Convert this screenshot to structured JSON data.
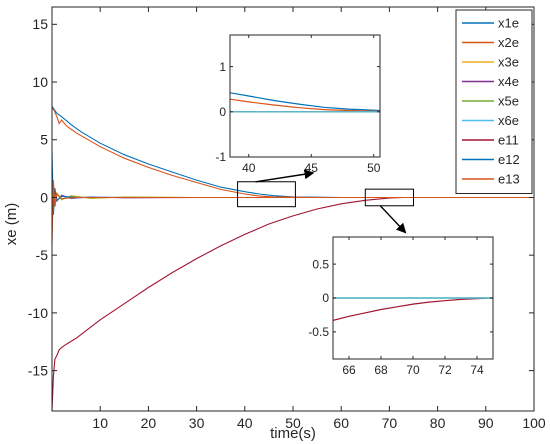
{
  "chart_data": [
    {
      "type": "line",
      "role": "main",
      "xlabel": "time(s)",
      "ylabel": "xe (m)",
      "xlim": [
        0,
        100
      ],
      "ylim": [
        -18.5,
        16.5
      ],
      "xticks": [
        10,
        20,
        30,
        40,
        50,
        60,
        70,
        80,
        90,
        100
      ],
      "yticks": [
        -15,
        -10,
        -5,
        0,
        5,
        10,
        15
      ],
      "grid": false,
      "legend_position": "top-right",
      "series": [
        {
          "name": "x1e",
          "color": "#0072BD",
          "x": [
            0,
            0.5,
            1,
            2,
            4,
            6,
            10,
            15,
            20,
            25,
            30,
            35,
            40,
            43,
            46,
            50,
            55,
            60,
            70,
            100
          ],
          "y": [
            7.9,
            7.6,
            7.3,
            7.0,
            6.3,
            5.7,
            4.7,
            3.7,
            2.9,
            2.2,
            1.5,
            0.9,
            0.5,
            0.3,
            0.15,
            0.05,
            0.02,
            0,
            0,
            0
          ]
        },
        {
          "name": "x2e",
          "color": "#D95319",
          "x": [
            0,
            0.5,
            1,
            1.5,
            2,
            3,
            5,
            10,
            15,
            20,
            25,
            30,
            35,
            40,
            43,
            46,
            50,
            55,
            60,
            70,
            100
          ],
          "y": [
            7.8,
            7.5,
            7.0,
            6.4,
            6.7,
            6.2,
            5.6,
            4.4,
            3.4,
            2.6,
            1.9,
            1.3,
            0.7,
            0.3,
            0.12,
            0.05,
            0.02,
            0,
            0,
            0,
            0
          ]
        },
        {
          "name": "x3e",
          "color": "#EDB120",
          "x": [
            0,
            0.3,
            0.6,
            1,
            2,
            4,
            8,
            15,
            30,
            100
          ],
          "y": [
            0,
            0.9,
            -0.5,
            0.4,
            -0.2,
            0.15,
            -0.08,
            0.04,
            0,
            0
          ]
        },
        {
          "name": "x4e",
          "color": "#7E2F8E",
          "x": [
            0,
            0.3,
            0.6,
            1,
            2,
            4,
            8,
            15,
            30,
            100
          ],
          "y": [
            0,
            -0.6,
            0.5,
            -0.3,
            0.2,
            -0.1,
            0.06,
            -0.03,
            0,
            0
          ]
        },
        {
          "name": "x5e",
          "color": "#77AC30",
          "x": [
            0,
            0.3,
            0.6,
            1,
            2,
            4,
            8,
            15,
            30,
            100
          ],
          "y": [
            0,
            0.6,
            -0.4,
            0.3,
            -0.15,
            0.1,
            -0.05,
            0.02,
            0,
            0
          ]
        },
        {
          "name": "x6e",
          "color": "#4DBEEE",
          "x": [
            0,
            0.3,
            0.6,
            1,
            2,
            4,
            8,
            15,
            30,
            100
          ],
          "y": [
            0,
            -0.4,
            0.3,
            -0.2,
            0.12,
            -0.06,
            0.03,
            0,
            0,
            0
          ]
        },
        {
          "name": "e11",
          "color": "#A2142F",
          "x": [
            0,
            0.3,
            0.6,
            1,
            1.5,
            2,
            3,
            5,
            10,
            15,
            20,
            25,
            30,
            35,
            40,
            45,
            50,
            55,
            60,
            65,
            70,
            73,
            76,
            100
          ],
          "y": [
            -18.5,
            -15.5,
            -14.0,
            -13.7,
            -13.2,
            -13.0,
            -12.7,
            -12.2,
            -10.6,
            -9.2,
            -7.8,
            -6.5,
            -5.3,
            -4.2,
            -3.2,
            -2.3,
            -1.6,
            -1.0,
            -0.55,
            -0.25,
            -0.05,
            0,
            0,
            0
          ]
        },
        {
          "name": "e12",
          "color": "#0072BD",
          "x": [
            0,
            0.3,
            0.6,
            1,
            2,
            5,
            100
          ],
          "y": [
            4.0,
            -1.5,
            0.8,
            -0.3,
            0.1,
            0,
            0
          ]
        },
        {
          "name": "e13",
          "color": "#D95319",
          "x": [
            0,
            0.3,
            0.6,
            1,
            2,
            5,
            100
          ],
          "y": [
            -4.0,
            1.5,
            -0.8,
            0.3,
            -0.1,
            0,
            0
          ]
        }
      ]
    },
    {
      "type": "line",
      "role": "inset-upper",
      "xlim": [
        38.5,
        50.5
      ],
      "ylim": [
        -1,
        1.7
      ],
      "xticks": [
        40,
        45,
        50
      ],
      "yticks": [
        -1,
        0,
        1
      ],
      "series": [
        {
          "name": "x1e",
          "color": "#0072BD",
          "x": [
            38.5,
            40,
            42,
            44,
            46,
            48,
            50.5
          ],
          "y": [
            0.42,
            0.35,
            0.25,
            0.17,
            0.1,
            0.06,
            0.03
          ]
        },
        {
          "name": "x2e",
          "color": "#D95319",
          "x": [
            38.5,
            40,
            42,
            44,
            46,
            48,
            50.5
          ],
          "y": [
            0.28,
            0.22,
            0.15,
            0.09,
            0.05,
            0.03,
            0.01
          ]
        },
        {
          "name": "x3e",
          "color": "#EDB120",
          "x": [
            38.5,
            50.5
          ],
          "y": [
            0,
            0
          ]
        },
        {
          "name": "x4e",
          "color": "#7E2F8E",
          "x": [
            38.5,
            50.5
          ],
          "y": [
            0,
            0
          ]
        },
        {
          "name": "x5e",
          "color": "#77AC30",
          "x": [
            38.5,
            50.5
          ],
          "y": [
            0,
            0
          ]
        },
        {
          "name": "x6e",
          "color": "#4DBEEE",
          "x": [
            38.5,
            50.5
          ],
          "y": [
            0,
            0
          ]
        }
      ]
    },
    {
      "type": "line",
      "role": "inset-lower",
      "xlim": [
        65,
        75
      ],
      "ylim": [
        -0.9,
        0.9
      ],
      "xticks": [
        66,
        68,
        70,
        72,
        74
      ],
      "yticks": [
        -0.5,
        0,
        0.5
      ],
      "series": [
        {
          "name": "e11",
          "color": "#A2142F",
          "x": [
            65,
            66,
            67,
            68,
            69,
            70,
            71,
            72,
            73,
            74,
            75
          ],
          "y": [
            -0.33,
            -0.27,
            -0.22,
            -0.17,
            -0.13,
            -0.09,
            -0.06,
            -0.04,
            -0.02,
            -0.01,
            0
          ]
        },
        {
          "name": "x1e",
          "color": "#0072BD",
          "x": [
            65,
            75
          ],
          "y": [
            0,
            0
          ]
        },
        {
          "name": "x3e",
          "color": "#EDB120",
          "x": [
            65,
            75
          ],
          "y": [
            0,
            0
          ]
        },
        {
          "name": "x5e",
          "color": "#77AC30",
          "x": [
            65,
            75
          ],
          "y": [
            0,
            0
          ]
        },
        {
          "name": "x6e",
          "color": "#4DBEEE",
          "x": [
            65,
            75
          ],
          "y": [
            0,
            0
          ]
        }
      ]
    }
  ]
}
